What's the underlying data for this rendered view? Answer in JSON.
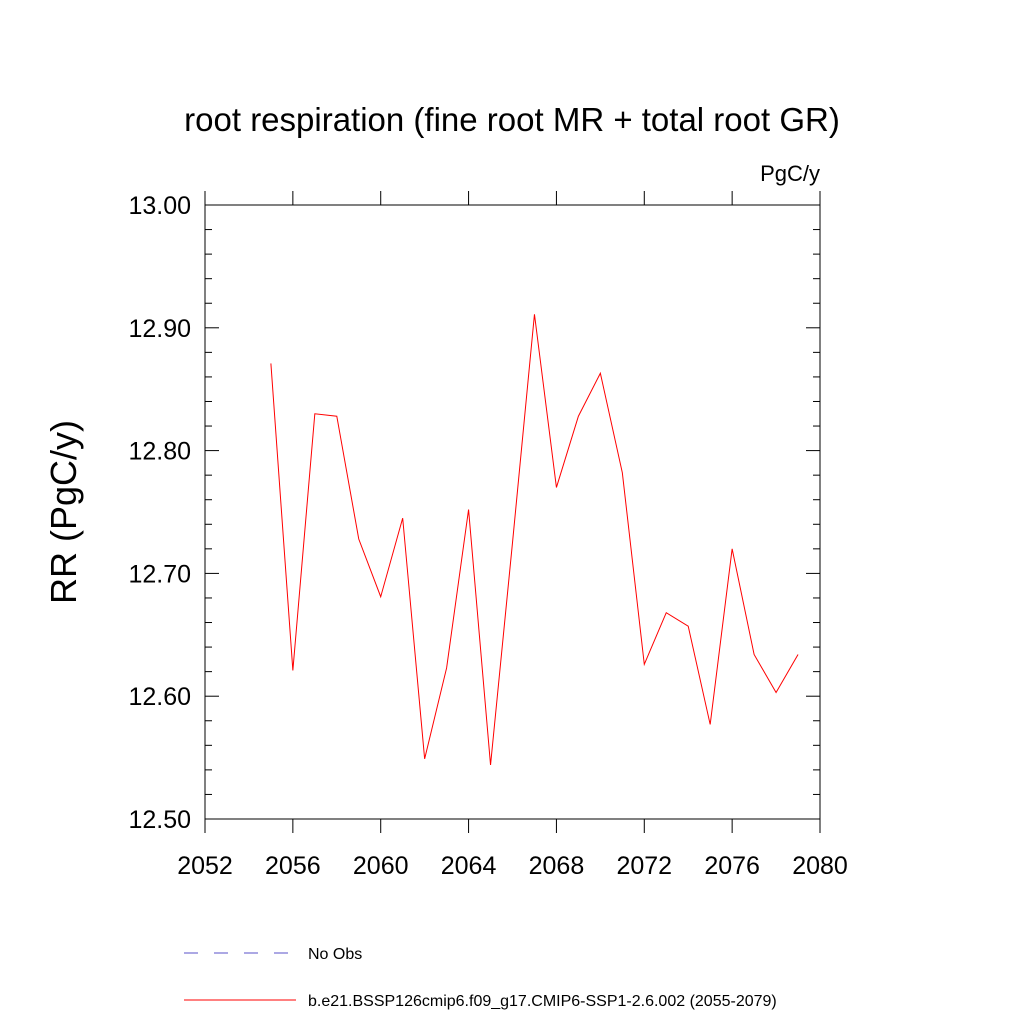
{
  "chart_data": {
    "type": "line",
    "title": "root respiration (fine root MR + total root GR)",
    "units": "PgC/y",
    "xlabel": "",
    "ylabel": "RR  (PgC/y)",
    "xlim": [
      2052,
      2080
    ],
    "ylim": [
      12.5,
      13.0
    ],
    "x_ticks": [
      2052,
      2056,
      2060,
      2064,
      2068,
      2072,
      2076,
      2080
    ],
    "x_tick_labels": [
      "2052",
      "2056",
      "2060",
      "2064",
      "2068",
      "2072",
      "2076",
      "2080"
    ],
    "y_ticks": [
      12.5,
      12.6,
      12.7,
      12.8,
      12.9,
      13.0
    ],
    "y_tick_labels": [
      "12.50",
      "12.60",
      "12.70",
      "12.80",
      "12.90",
      "13.00"
    ],
    "series": [
      {
        "name": "b.e21.BSSP126cmip6.f09_g17.CMIP6-SSP1-2.6.002 (2055-2079)",
        "color": "#ff0000",
        "style": "solid",
        "x": [
          2055,
          2056,
          2057,
          2058,
          2059,
          2060,
          2061,
          2062,
          2063,
          2064,
          2065,
          2066,
          2067,
          2068,
          2069,
          2070,
          2071,
          2072,
          2073,
          2074,
          2075,
          2076,
          2077,
          2078,
          2079
        ],
        "values": [
          12.871,
          12.621,
          12.83,
          12.828,
          12.728,
          12.681,
          12.745,
          12.549,
          12.623,
          12.752,
          12.544,
          12.725,
          12.911,
          12.77,
          12.828,
          12.863,
          12.782,
          12.626,
          12.668,
          12.657,
          12.577,
          12.72,
          12.634,
          12.603,
          12.634
        ]
      }
    ],
    "legend": [
      {
        "label": "No Obs",
        "color": "#5a52c8",
        "style": "dashed"
      },
      {
        "label": "b.e21.BSSP126cmip6.f09_g17.CMIP6-SSP1-2.6.002 (2055-2079)",
        "color": "#ff0000",
        "style": "solid"
      }
    ],
    "legend_position": "bottom"
  }
}
